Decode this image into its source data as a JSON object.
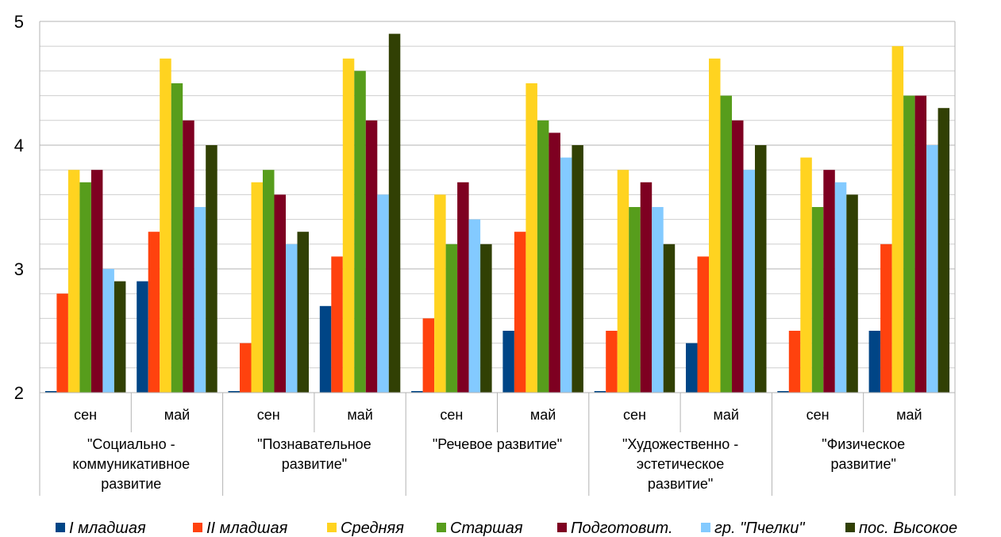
{
  "chart_data": {
    "type": "bar",
    "title": "",
    "xlabel": "",
    "ylabel": "",
    "ylim": [
      2,
      5
    ],
    "yticks": [
      2,
      3,
      4,
      5
    ],
    "grid": true,
    "legend_position": "bottom",
    "groups": [
      {
        "label_lines": [
          "\"Социально -",
          "коммуникативное",
          "развитие"
        ],
        "subs": [
          "сен",
          "май"
        ]
      },
      {
        "label_lines": [
          "\"Познавательное",
          "развитие\""
        ],
        "subs": [
          "сен",
          "май"
        ]
      },
      {
        "label_lines": [
          "\"Речевое развитие\""
        ],
        "subs": [
          "сен",
          "май"
        ]
      },
      {
        "label_lines": [
          "\"Художественно -",
          "эстетическое",
          "развитие\""
        ],
        "subs": [
          "сен",
          "май"
        ]
      },
      {
        "label_lines": [
          "\"Физическое",
          "развитие\""
        ],
        "subs": [
          "сен",
          "май"
        ]
      }
    ],
    "series": [
      {
        "name": "I младшая",
        "color": "#004586",
        "values": [
          2.0,
          2.9,
          2.0,
          2.7,
          2.0,
          2.5,
          2.0,
          2.4,
          2.0,
          2.5
        ]
      },
      {
        "name": "II младшая",
        "color": "#ff420e",
        "values": [
          2.8,
          3.3,
          2.4,
          3.1,
          2.6,
          3.3,
          2.5,
          3.1,
          2.5,
          3.2
        ]
      },
      {
        "name": "Средняя",
        "color": "#ffd320",
        "values": [
          3.8,
          4.7,
          3.7,
          4.7,
          3.6,
          4.5,
          3.8,
          4.7,
          3.9,
          4.8
        ]
      },
      {
        "name": "Старшая",
        "color": "#579d1c",
        "values": [
          3.7,
          4.5,
          3.8,
          4.6,
          3.2,
          4.2,
          3.5,
          4.4,
          3.5,
          4.4
        ]
      },
      {
        "name": "Подготовит.",
        "color": "#7e0021",
        "values": [
          3.8,
          4.2,
          3.6,
          4.2,
          3.7,
          4.1,
          3.7,
          4.2,
          3.8,
          4.4
        ]
      },
      {
        "name": "гр. \"Пчелки\"",
        "color": "#83caff",
        "values": [
          3.0,
          3.5,
          3.2,
          3.6,
          3.4,
          3.9,
          3.5,
          3.8,
          3.7,
          4.0
        ]
      },
      {
        "name": "пос. Высокое",
        "color": "#314004",
        "values": [
          2.9,
          4.0,
          3.3,
          4.9,
          3.2,
          4.0,
          3.2,
          4.0,
          3.6,
          4.3
        ]
      }
    ]
  }
}
